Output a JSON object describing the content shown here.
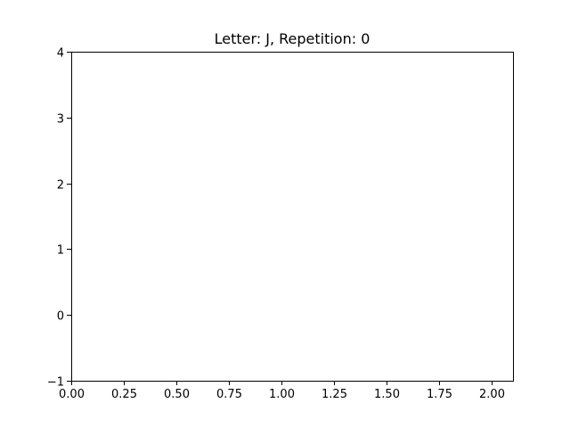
{
  "chart_data": {
    "type": "line",
    "title": "Letter: J, Repetition: 0",
    "xlabel": "",
    "ylabel": "",
    "xlim": [
      0,
      2.1
    ],
    "ylim": [
      -1,
      4
    ],
    "x_ticks": [
      0.0,
      0.25,
      0.5,
      0.75,
      1.0,
      1.25,
      1.5,
      1.75,
      2.0
    ],
    "x_tick_labels": [
      "0.00",
      "0.25",
      "0.50",
      "0.75",
      "1.00",
      "1.25",
      "1.50",
      "1.75",
      "2.00"
    ],
    "y_ticks": [
      -1,
      0,
      1,
      2,
      3,
      4
    ],
    "y_tick_labels": [
      "−1",
      "0",
      "1",
      "2",
      "3",
      "4"
    ],
    "grid": false,
    "legend": "none",
    "series": [],
    "colors": {
      "axes": "#000000",
      "background": "#ffffff"
    }
  }
}
